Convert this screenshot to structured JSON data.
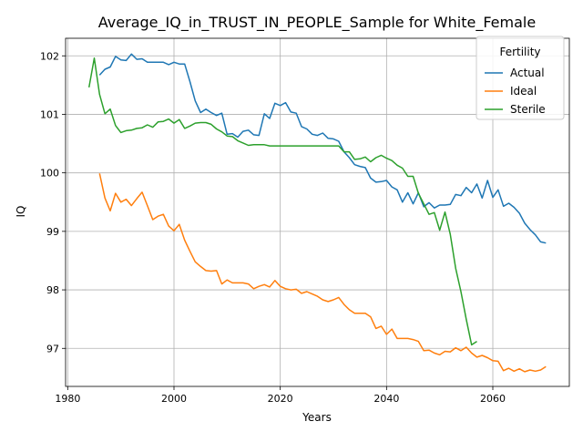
{
  "chart_data": {
    "type": "line",
    "title": "Average_IQ_in_TRUST_IN_PEOPLE_Sample for White_Female",
    "xlabel": "Years",
    "ylabel": "IQ",
    "xlim": [
      1979.6,
      2074.4
    ],
    "ylim": [
      96.35,
      102.3
    ],
    "xticks": [
      1980,
      2000,
      2020,
      2040,
      2060
    ],
    "yticks": [
      97,
      98,
      99,
      100,
      101,
      102
    ],
    "grid": true,
    "legend": {
      "title": "Fertility",
      "position": "top-right"
    },
    "series": [
      {
        "name": "Actual",
        "color": "#1f77b4",
        "x": [
          1986,
          1987,
          1988,
          1989,
          1990,
          1991,
          1992,
          1993,
          1994,
          1995,
          1996,
          1997,
          1998,
          1999,
          2000,
          2001,
          2002,
          2003,
          2004,
          2005,
          2006,
          2007,
          2008,
          2009,
          2010,
          2011,
          2012,
          2013,
          2014,
          2015,
          2016,
          2017,
          2018,
          2019,
          2020,
          2021,
          2022,
          2023,
          2024,
          2025,
          2026,
          2027,
          2028,
          2029,
          2030,
          2031,
          2032,
          2033,
          2034,
          2035,
          2036,
          2037,
          2038,
          2039,
          2040,
          2041,
          2042,
          2043,
          2044,
          2045,
          2046,
          2047,
          2048,
          2049,
          2050,
          2051,
          2052,
          2053,
          2054,
          2055,
          2056,
          2057,
          2058,
          2059,
          2060,
          2061,
          2062,
          2063,
          2064,
          2065,
          2066,
          2067,
          2068,
          2069,
          2070
        ],
        "y": [
          101.67,
          101.77,
          101.81,
          101.99,
          101.93,
          101.92,
          102.03,
          101.94,
          101.95,
          101.89,
          101.89,
          101.89,
          101.89,
          101.85,
          101.89,
          101.86,
          101.86,
          101.56,
          101.23,
          101.03,
          101.09,
          101.03,
          100.98,
          101.02,
          100.66,
          100.67,
          100.61,
          100.71,
          100.73,
          100.65,
          100.64,
          101.01,
          100.93,
          101.19,
          101.15,
          101.2,
          101.04,
          101.02,
          100.79,
          100.75,
          100.66,
          100.64,
          100.68,
          100.59,
          100.58,
          100.54,
          100.36,
          100.26,
          100.14,
          100.11,
          100.09,
          99.91,
          99.84,
          99.85,
          99.87,
          99.76,
          99.71,
          99.5,
          99.66,
          99.47,
          99.66,
          99.42,
          99.49,
          99.4,
          99.45,
          99.45,
          99.46,
          99.63,
          99.61,
          99.75,
          99.66,
          99.81,
          99.57,
          99.87,
          99.58,
          99.71,
          99.43,
          99.48,
          99.41,
          99.31,
          99.14,
          99.03,
          98.94,
          98.82,
          98.8
        ]
      },
      {
        "name": "Ideal",
        "color": "#ff7f0e",
        "x": [
          1986,
          1987,
          1988,
          1989,
          1990,
          1991,
          1992,
          1993,
          1994,
          1995,
          1996,
          1997,
          1998,
          1999,
          2000,
          2001,
          2002,
          2003,
          2004,
          2005,
          2006,
          2007,
          2008,
          2009,
          2010,
          2011,
          2012,
          2013,
          2014,
          2015,
          2016,
          2017,
          2018,
          2019,
          2020,
          2021,
          2022,
          2023,
          2024,
          2025,
          2026,
          2027,
          2028,
          2029,
          2030,
          2031,
          2032,
          2033,
          2034,
          2035,
          2036,
          2037,
          2038,
          2039,
          2040,
          2041,
          2042,
          2043,
          2044,
          2045,
          2046,
          2047,
          2048,
          2049,
          2050,
          2051,
          2052,
          2053,
          2054,
          2055,
          2056,
          2057,
          2058,
          2059,
          2060,
          2061,
          2062,
          2063,
          2064,
          2065,
          2066,
          2067,
          2068,
          2069,
          2070
        ],
        "y": [
          99.99,
          99.57,
          99.35,
          99.65,
          99.5,
          99.55,
          99.44,
          99.56,
          99.67,
          99.44,
          99.2,
          99.26,
          99.29,
          99.09,
          99.01,
          99.12,
          98.85,
          98.66,
          98.48,
          98.4,
          98.33,
          98.32,
          98.33,
          98.1,
          98.17,
          98.12,
          98.12,
          98.12,
          98.1,
          98.02,
          98.06,
          98.09,
          98.05,
          98.16,
          98.06,
          98.02,
          98.0,
          98.01,
          97.94,
          97.97,
          97.93,
          97.89,
          97.83,
          97.8,
          97.83,
          97.87,
          97.75,
          97.66,
          97.6,
          97.6,
          97.6,
          97.54,
          97.34,
          97.38,
          97.24,
          97.33,
          97.17,
          97.17,
          97.17,
          97.15,
          97.12,
          96.96,
          96.97,
          96.92,
          96.89,
          96.95,
          96.94,
          97.01,
          96.96,
          97.02,
          96.92,
          96.85,
          96.88,
          96.84,
          96.79,
          96.78,
          96.62,
          96.66,
          96.61,
          96.65,
          96.6,
          96.63,
          96.61,
          96.63,
          96.69
        ]
      },
      {
        "name": "Sterile",
        "color": "#2ca02c",
        "x": [
          1984,
          1985,
          1986,
          1987,
          1988,
          1989,
          1990,
          1991,
          1992,
          1993,
          1994,
          1995,
          1996,
          1997,
          1998,
          1999,
          2000,
          2001,
          2002,
          2003,
          2004,
          2005,
          2006,
          2007,
          2008,
          2009,
          2010,
          2011,
          2012,
          2013,
          2014,
          2015,
          2016,
          2017,
          2018,
          2019,
          2020,
          2021,
          2022,
          2023,
          2024,
          2025,
          2026,
          2027,
          2028,
          2029,
          2030,
          2031,
          2032,
          2033,
          2034,
          2035,
          2036,
          2037,
          2038,
          2039,
          2040,
          2041,
          2042,
          2043,
          2044,
          2045,
          2046,
          2047,
          2048,
          2049,
          2050,
          2051,
          2052,
          2053,
          2054,
          2055,
          2056,
          2057
        ],
        "y": [
          101.46,
          101.96,
          101.34,
          101.01,
          101.09,
          100.81,
          100.69,
          100.72,
          100.73,
          100.76,
          100.77,
          100.82,
          100.78,
          100.87,
          100.88,
          100.92,
          100.85,
          100.91,
          100.76,
          100.8,
          100.85,
          100.86,
          100.86,
          100.83,
          100.75,
          100.7,
          100.63,
          100.62,
          100.55,
          100.51,
          100.47,
          100.48,
          100.48,
          100.48,
          100.46,
          100.46,
          100.46,
          100.46,
          100.46,
          100.46,
          100.46,
          100.46,
          100.46,
          100.46,
          100.46,
          100.46,
          100.46,
          100.46,
          100.36,
          100.36,
          100.23,
          100.24,
          100.27,
          100.19,
          100.26,
          100.3,
          100.25,
          100.21,
          100.13,
          100.08,
          99.94,
          99.94,
          99.65,
          99.47,
          99.29,
          99.32,
          99.02,
          99.33,
          98.95,
          98.37,
          97.97,
          97.5,
          97.06,
          97.12
        ]
      }
    ]
  }
}
